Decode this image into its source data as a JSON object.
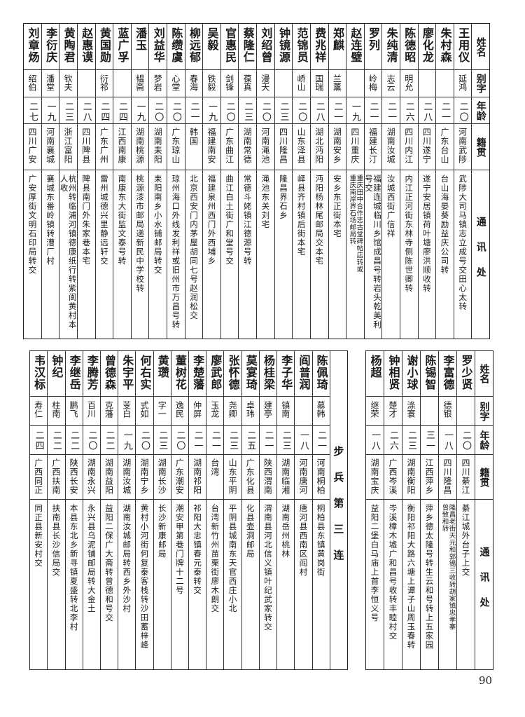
{
  "headers": {
    "name": "姓名",
    "alias": "别字",
    "age": "年龄",
    "native": "籍贯",
    "address": "通讯处"
  },
  "top": {
    "people": [
      {
        "name": "王用仪",
        "alias": "延鸿",
        "age": "二〇",
        "native": "河南武陟",
        "address": [
          "武陟大司马镇志立成号交田心太转"
        ]
      },
      {
        "name": "朱村森",
        "alias": "",
        "age": "二一",
        "native": "广东台山",
        "address": [
          "台山海晏葵励益庆公司转"
        ]
      },
      {
        "name": "廖化龙",
        "alias": "",
        "age": "二八",
        "native": "四川遂宁",
        "address": [
          "遂宁安居镇荷叶塘廖洪顺收转"
        ]
      },
      {
        "name": "陈德昭",
        "alias": "明允",
        "age": "二六",
        "native": "四川内江",
        "address": [
          "内江正河街东林寺侧陈世卿转"
        ]
      },
      {
        "name": "朱纯清",
        "alias": "志云",
        "age": "二一",
        "native": "湖南汝城",
        "address": [
          "汝城西街广信祥"
        ]
      },
      {
        "name": "罗列",
        "alias": "岭梅",
        "age": "二一",
        "native": "福建长汀",
        "address": [
          "福建连城临川乡馆成昌号转岩头乾美利号交"
        ]
      },
      {
        "name": "赵连璧",
        "alias": "",
        "age": "一九",
        "native": "四川重庆",
        "address": [
          "重庆田中合作志古堂碑帖店转或",
          "重庆南岸界石场邮局转"
        ]
      },
      {
        "name": "郑麒",
        "alias": "兰薰",
        "age": "二一",
        "native": "湖南安乡",
        "address": [
          "安乡东正街本宅"
        ]
      },
      {
        "name": "费兆祥",
        "alias": "国瑞",
        "age": "二八",
        "native": "湖北沔阳",
        "address": [
          "沔阳杨林尾邮局交本宅"
        ]
      },
      {
        "name": "范锦员",
        "alias": "峤山",
        "age": "二〇",
        "native": "山东泽县",
        "address": [
          "峄县齐村镇后街本宅"
        ]
      },
      {
        "name": "钟镜源",
        "alias": "",
        "age": "二三",
        "native": "四川隆昌",
        "address": [
          "隆昌界石乡"
        ]
      },
      {
        "name": "刘绍曾",
        "alias": "漫天",
        "age": "二〇",
        "native": "河南渑池",
        "address": [
          "渑池东关刘宅"
        ]
      },
      {
        "name": "蔡隆仁",
        "alias": "葆真",
        "age": "二三",
        "native": "湖南常德",
        "address": [
          "常德斗姥镇江德源号转"
        ]
      },
      {
        "name": "官惠民",
        "alias": "剑锋",
        "age": "二〇",
        "native": "广东曲江",
        "address": [
          "曲江白土街广和堂号交"
        ]
      },
      {
        "name": "吴毅",
        "alias": "铁毅",
        "age": "一九",
        "native": "福建南安",
        "address": [
          "福建泉州西门外西埔乡"
        ]
      },
      {
        "name": "柳远郁",
        "alias": "春海",
        "age": "二一",
        "native": "韩国",
        "address": [
          "北京西安门内茅屋胡同七号赵润松交"
        ]
      },
      {
        "name": "陈缵虞",
        "alias": "心堂",
        "age": "二〇",
        "native": "广东琼山",
        "address": [
          "琼州海口外线发利祥或旧州市万昌号转"
        ]
      },
      {
        "name": "刘益华",
        "alias": "梦岩",
        "age": "二〇",
        "native": "湖南耒阳",
        "address": [
          "耒阳南乡小水铺邮局转交"
        ]
      },
      {
        "name": "潘玉",
        "alias": "韫斋",
        "age": "一九",
        "native": "湖南桃源",
        "address": [
          "桃源漆市邮局递新民中学校转"
        ]
      },
      {
        "name": "蓝广孚",
        "alias": "",
        "age": "二四",
        "native": "江西南康",
        "address": [
          "南康东大街监文泰号转"
        ]
      },
      {
        "name": "黄国勋",
        "alias": "衍祁",
        "age": "二四",
        "native": "广东广州",
        "address": [
          "雷州城德兴里静远轩交"
        ]
      },
      {
        "name": "赵惠谟",
        "alias": "",
        "age": "二八",
        "native": "四川陴县",
        "address": [
          "陴县南门外朱家巷本宅"
        ]
      },
      {
        "name": "黄陶君",
        "alias": "钦夫",
        "age": "二三",
        "native": "浙江富阳",
        "address": [
          "杭州转临浦河镇德康纸行转紫阆黄村本人收"
        ]
      },
      {
        "name": "李衍庆",
        "alias": "潘堂",
        "age": "一九",
        "native": "河南襄城",
        "address": [
          "襄城东番岭镇转漕厂村"
        ]
      },
      {
        "name": "刘章炀",
        "alias": "绍伯",
        "age": "二七",
        "native": "四川广安",
        "address": [
          "广安厚街文明石印局转交"
        ]
      }
    ]
  },
  "bottom_right": {
    "people": [
      {
        "name": "罗少贤",
        "alias": "",
        "age": "二〇",
        "native": "四川綦江",
        "address": [
          "綦江城外台子上交"
        ]
      },
      {
        "name": "李富德",
        "alias": "德银",
        "age": "一八",
        "native": "四川隆昌",
        "address": [
          "隆昌老街天元和郭锡三收转胡家镇忠孝寨",
          "曾致和转"
        ]
      },
      {
        "name": "陈锡智",
        "alias": "",
        "age": "三一",
        "native": "江西萍乡",
        "address": [
          "萍乡德太隆号转生云和号转上五家园"
        ]
      },
      {
        "name": "谢小球",
        "alias": "涤寰",
        "age": "二三",
        "native": "湖南衡阳",
        "address": [
          "衡阳祁阳大路六塘上谭子山周玉春转"
        ]
      },
      {
        "name": "钟相贤",
        "alias": "楚才",
        "age": "二六",
        "native": "广西岑溪",
        "address": [
          "岑溪樟木墟广和昌号收转丰睦村交"
        ]
      },
      {
        "name": "杨超",
        "alias": "继荣",
        "age": "一八",
        "native": "湖南宝庆",
        "address": [
          "益阳二堡白马庙上首李恒义号"
        ]
      }
    ]
  },
  "bottom_left": {
    "section_label": "步兵第三连",
    "people": [
      {
        "name": "陈佩琦",
        "alias": "慕韩",
        "age": "二一",
        "native": "河南桐柏",
        "address": [
          "桐柏县东镇黄岗街"
        ]
      },
      {
        "name": "阎普润",
        "alias": "",
        "age": "一八",
        "native": "河南唐河",
        "address": [
          "唐河县西南区阎村"
        ]
      },
      {
        "name": "李子华",
        "alias": "镇南",
        "age": "二三",
        "native": "湖南临湘",
        "address": [
          "湖南岳州桃林"
        ]
      },
      {
        "name": "杨桂梁",
        "alias": "建亭",
        "age": "二一",
        "native": "陕西渭南",
        "address": [
          "渭南县河北信义镇叶纪武家转交"
        ]
      },
      {
        "name": "莫宴琦",
        "alias": "卓玮",
        "age": "二五",
        "native": "广东化县",
        "address": [
          "化县壶洞邮局"
        ]
      },
      {
        "name": "张怀德",
        "alias": "尧卿",
        "age": "二三",
        "native": "山东平阴",
        "address": [
          "平阴县城南东天官西庄小北"
        ]
      },
      {
        "name": "廖武郎",
        "alias": "玉龙",
        "age": "二一",
        "native": "台湾",
        "address": [
          "台湾新竹州苗栗街廖木朗交"
        ]
      },
      {
        "name": "李楚藩",
        "alias": "仲屏",
        "age": "二一",
        "native": "湖南祁阳",
        "address": [
          "祁阳大忠镇春元泰转交"
        ]
      },
      {
        "name": "董树花",
        "alias": "逸民",
        "age": "二〇",
        "native": "广东潮安",
        "address": [
          "潮安甲第巷门牌十二号"
        ]
      },
      {
        "name": "黄瓒",
        "alias": "字一",
        "age": "二三",
        "native": "湖南长沙",
        "address": [
          "长沙新康邮局"
        ]
      },
      {
        "name": "何右实",
        "alias": "式如",
        "age": "二〇",
        "native": "湖南宁乡",
        "address": [
          "黄村小河街何复泰客栈转沙田蓄梓峰"
        ]
      },
      {
        "name": "朱宇平",
        "alias": "芰白",
        "age": "一九",
        "native": "湖南汝城",
        "address": [
          "湖南汝城邮局转西乡外沙村"
        ]
      },
      {
        "name": "曾德森",
        "alias": "克藩",
        "age": "二二",
        "native": "湖南益阳",
        "address": [
          "益阳二保广大斋转曾德和号交"
        ]
      },
      {
        "name": "李腾芳",
        "alias": "百川",
        "age": "二〇",
        "native": "湖南永兴",
        "address": [
          "永兴县乌泥铺邮局转大金土"
        ]
      },
      {
        "name": "李继岳",
        "alias": "鹏飞",
        "age": "二二",
        "native": "陕西长安",
        "address": [
          "本县东北乡新寻镇夏盛转北李村"
        ]
      },
      {
        "name": "钟纪",
        "alias": "柱南",
        "age": "二二",
        "native": "广西扶南",
        "address": [
          "扶南县长沙信局交"
        ]
      },
      {
        "name": "韦汉标",
        "alias": "寿仁",
        "age": "二四",
        "native": "广西同正",
        "address": [
          "同正县新安村交"
        ]
      }
    ]
  },
  "page_number": "90"
}
